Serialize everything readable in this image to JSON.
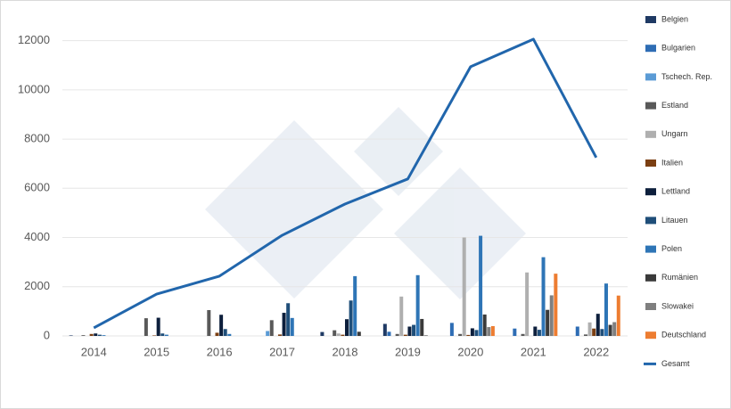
{
  "chart_data": {
    "type": "bar",
    "categories": [
      "2014",
      "2015",
      "2016",
      "2017",
      "2018",
      "2019",
      "2020",
      "2021",
      "2022"
    ],
    "ylim": [
      0,
      13000
    ],
    "yticks": [
      0,
      2000,
      4000,
      6000,
      8000,
      10000,
      12000
    ],
    "grid": true,
    "legend": "right",
    "series": [
      {
        "name": "Belgien",
        "color": "#1f3a64",
        "values": [
          20,
          0,
          0,
          0,
          160,
          490,
          0,
          0,
          0
        ]
      },
      {
        "name": "Bulgarien",
        "color": "#2e6db4",
        "values": [
          0,
          0,
          0,
          0,
          0,
          170,
          530,
          300,
          380
        ]
      },
      {
        "name": "Tschech. Rep.",
        "color": "#5b9bd5",
        "values": [
          0,
          0,
          0,
          200,
          0,
          0,
          0,
          0,
          0
        ]
      },
      {
        "name": "Estland",
        "color": "#595959",
        "values": [
          30,
          720,
          1050,
          640,
          230,
          80,
          80,
          80,
          60
        ]
      },
      {
        "name": "Ungarn",
        "color": "#afafaf",
        "values": [
          0,
          0,
          0,
          0,
          100,
          1600,
          4000,
          2580,
          550
        ]
      },
      {
        "name": "Italien",
        "color": "#7b3f12",
        "values": [
          80,
          20,
          130,
          60,
          50,
          50,
          40,
          0,
          300
        ]
      },
      {
        "name": "Lettland",
        "color": "#0d1f3c",
        "values": [
          100,
          740,
          860,
          940,
          680,
          380,
          310,
          380,
          900
        ]
      },
      {
        "name": "Litauen",
        "color": "#1f4e79",
        "values": [
          50,
          100,
          280,
          1330,
          1440,
          450,
          240,
          250,
          280
        ]
      },
      {
        "name": "Polen",
        "color": "#2e75b6",
        "values": [
          30,
          50,
          80,
          730,
          2430,
          2470,
          4070,
          3200,
          2130
        ]
      },
      {
        "name": "Rumänien",
        "color": "#3a3a3a",
        "values": [
          0,
          0,
          0,
          0,
          170,
          690,
          870,
          1060,
          450
        ]
      },
      {
        "name": "Slowakei",
        "color": "#7f7f7f",
        "values": [
          0,
          0,
          0,
          0,
          0,
          30,
          360,
          1650,
          560
        ]
      },
      {
        "name": "Deutschland",
        "color": "#ed7d31",
        "values": [
          0,
          0,
          0,
          0,
          0,
          0,
          400,
          2530,
          1640
        ]
      },
      {
        "name": "Gesamt",
        "color": "#2166ac",
        "type": "line",
        "values": [
          330,
          1700,
          2430,
          4090,
          5360,
          6380,
          10940,
          12060,
          7250
        ]
      }
    ]
  }
}
